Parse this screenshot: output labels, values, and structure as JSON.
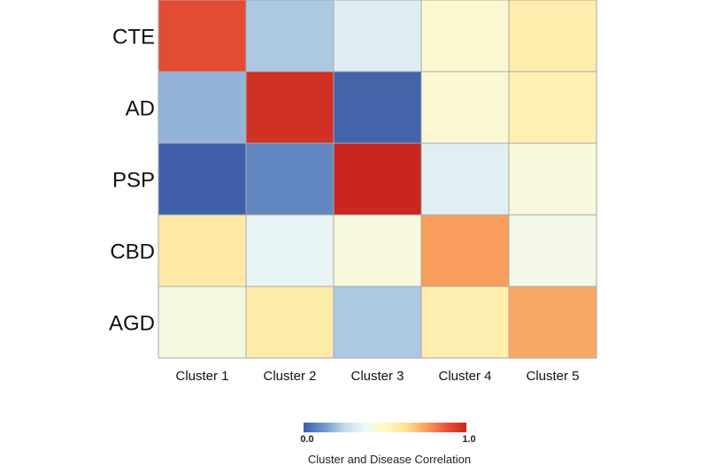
{
  "chart_data": {
    "type": "heatmap",
    "title": "",
    "xlabel": "",
    "ylabel": "",
    "rows": [
      "CTE",
      "AD",
      "PSP",
      "CBD",
      "AGD"
    ],
    "columns": [
      "Cluster 1",
      "Cluster 2",
      "Cluster 3",
      "Cluster 4",
      "Cluster 5"
    ],
    "values": [
      [
        0.9,
        0.22,
        0.33,
        0.47,
        0.57
      ],
      [
        0.18,
        0.97,
        0.01,
        0.46,
        0.55
      ],
      [
        0.0,
        0.09,
        1.0,
        0.34,
        0.44
      ],
      [
        0.59,
        0.36,
        0.44,
        0.76,
        0.41
      ],
      [
        0.43,
        0.58,
        0.22,
        0.56,
        0.74
      ]
    ],
    "colorbar": {
      "label": "Cluster and Disease Correlation",
      "min_label": "0.0",
      "max_label": "1.0",
      "range": [
        0,
        1
      ],
      "colors": [
        "#3f5fa8",
        "#6f96c9",
        "#c0d9ea",
        "#eef8f7",
        "#fff8c4",
        "#fde49a",
        "#f9a35f",
        "#e8553a",
        "#c8261e"
      ]
    }
  }
}
